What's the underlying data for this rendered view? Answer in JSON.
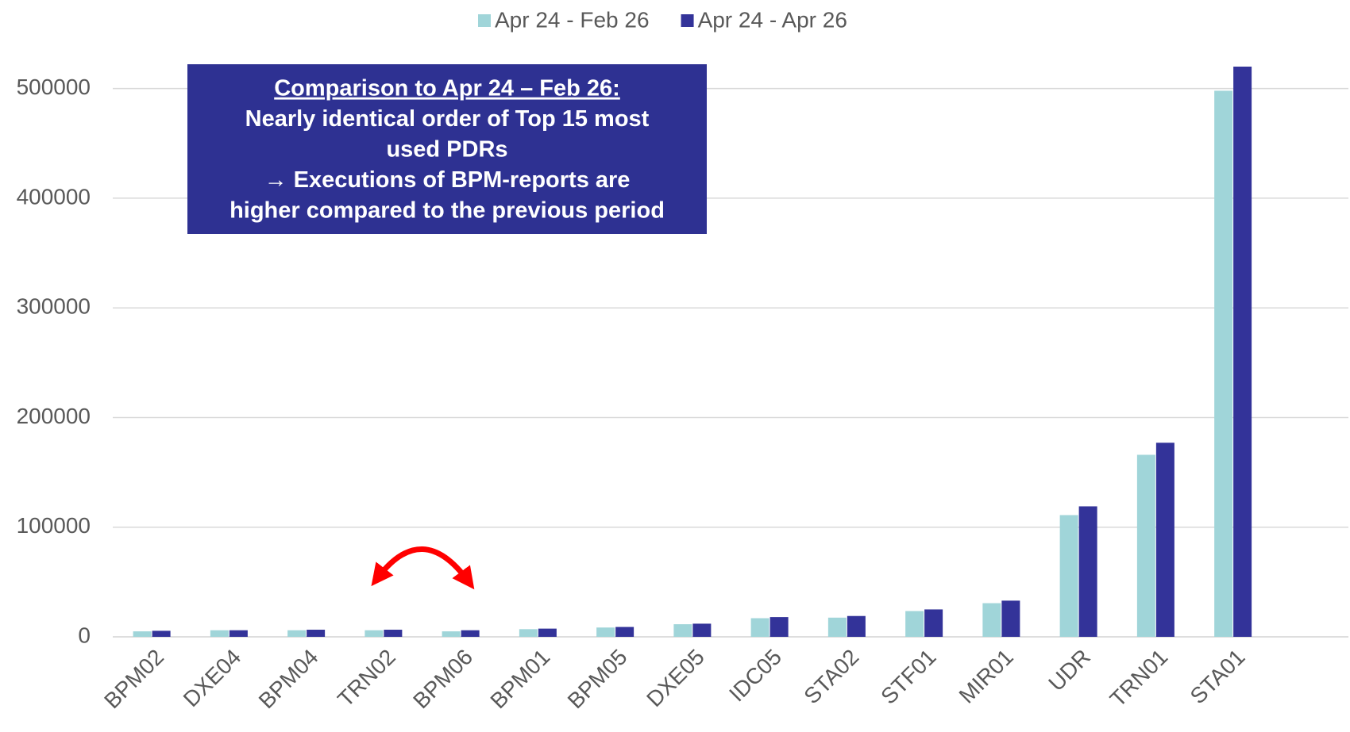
{
  "chart_data": {
    "type": "bar",
    "categories": [
      "BPM02",
      "DXE04",
      "BPM04",
      "TRN02",
      "BPM06",
      "BPM01",
      "BPM05",
      "DXE05",
      "IDC05",
      "STA02",
      "STF01",
      "MIR01",
      "UDR",
      "TRN01",
      "STA01"
    ],
    "series": [
      {
        "name": "Apr 24 - Feb 26",
        "color": "#a0d5d9",
        "values": [
          5000,
          6000,
          6000,
          6000,
          5000,
          7000,
          8500,
          11500,
          17000,
          17500,
          23500,
          30700,
          111000,
          166000,
          498000
        ]
      },
      {
        "name": "Apr 24 - Apr 26",
        "color": "#333399",
        "values": [
          5500,
          6000,
          6500,
          6500,
          6000,
          7500,
          9000,
          12000,
          18000,
          19000,
          25000,
          33000,
          119000,
          177000,
          520000
        ]
      }
    ],
    "ylim": [
      0,
      520000
    ],
    "yticks": [
      0,
      100000,
      200000,
      300000,
      400000,
      500000
    ],
    "grid": true,
    "legend": "top",
    "annotation": {
      "lines": [
        "Comparison to Apr 24 – Feb 26:",
        "Nearly identical order of Top 15 most",
        "used PDRs",
        "→ Executions of BPM-reports are",
        "higher compared to the previous period"
      ],
      "color": "#2e3192"
    }
  }
}
